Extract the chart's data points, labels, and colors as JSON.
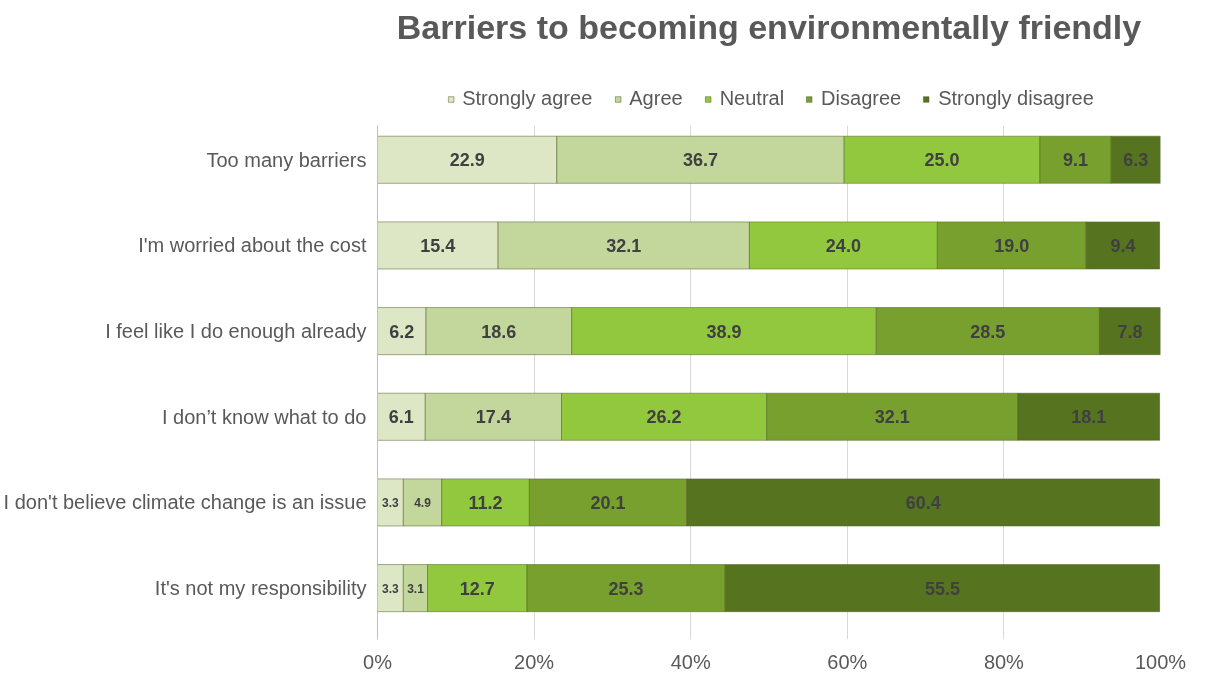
{
  "chart_data": {
    "type": "bar",
    "orientation": "horizontal",
    "stacked": true,
    "title": "Barriers to becoming environmentally friendly",
    "categories": [
      "Too many barriers",
      "I'm worried about the cost",
      "I feel like I do enough already",
      "I don’t know what to do",
      "I don't believe climate change is an issue",
      "It's not my responsibility"
    ],
    "series": [
      {
        "name": "Strongly agree",
        "color": "#dde7c6",
        "values": [
          22.9,
          15.4,
          6.2,
          6.1,
          3.3,
          3.3
        ],
        "value_labels": [
          "22.9",
          "15.4",
          "6.2",
          "6.1",
          "3.3",
          "3.3"
        ]
      },
      {
        "name": "Agree",
        "color": "#c3d69b",
        "values": [
          36.7,
          32.1,
          18.6,
          17.4,
          4.9,
          3.1
        ],
        "value_labels": [
          "36.7",
          "32.1",
          "18.6",
          "17.4",
          "4.9",
          "3.1"
        ]
      },
      {
        "name": "Neutral",
        "color": "#92c83e",
        "values": [
          25.0,
          24.0,
          38.9,
          26.2,
          11.2,
          12.7
        ],
        "value_labels": [
          "25.0",
          "24.0",
          "38.9",
          "26.2",
          "11.2",
          "12.7"
        ]
      },
      {
        "name": "Disagree",
        "color": "#77a02e",
        "values": [
          9.1,
          19.0,
          28.5,
          32.1,
          20.1,
          25.3
        ],
        "value_labels": [
          "9.1",
          "19.0",
          "28.5",
          "32.1",
          "20.1",
          "25.3"
        ]
      },
      {
        "name": "Strongly disagree",
        "color": "#56731f",
        "values": [
          6.3,
          9.4,
          7.8,
          18.1,
          60.4,
          55.5
        ],
        "value_labels": [
          "6.3",
          "9.4",
          "7.8",
          "18.1",
          "60.4",
          "55.5"
        ]
      }
    ],
    "xlim": [
      0,
      100
    ],
    "xticks": [
      {
        "value": 0,
        "label": "0%"
      },
      {
        "value": 20,
        "label": "20%"
      },
      {
        "value": 40,
        "label": "40%"
      },
      {
        "value": 60,
        "label": "60%"
      },
      {
        "value": 80,
        "label": "80%"
      },
      {
        "value": 100,
        "label": "100%"
      }
    ],
    "grid": "x",
    "legend": "top"
  }
}
